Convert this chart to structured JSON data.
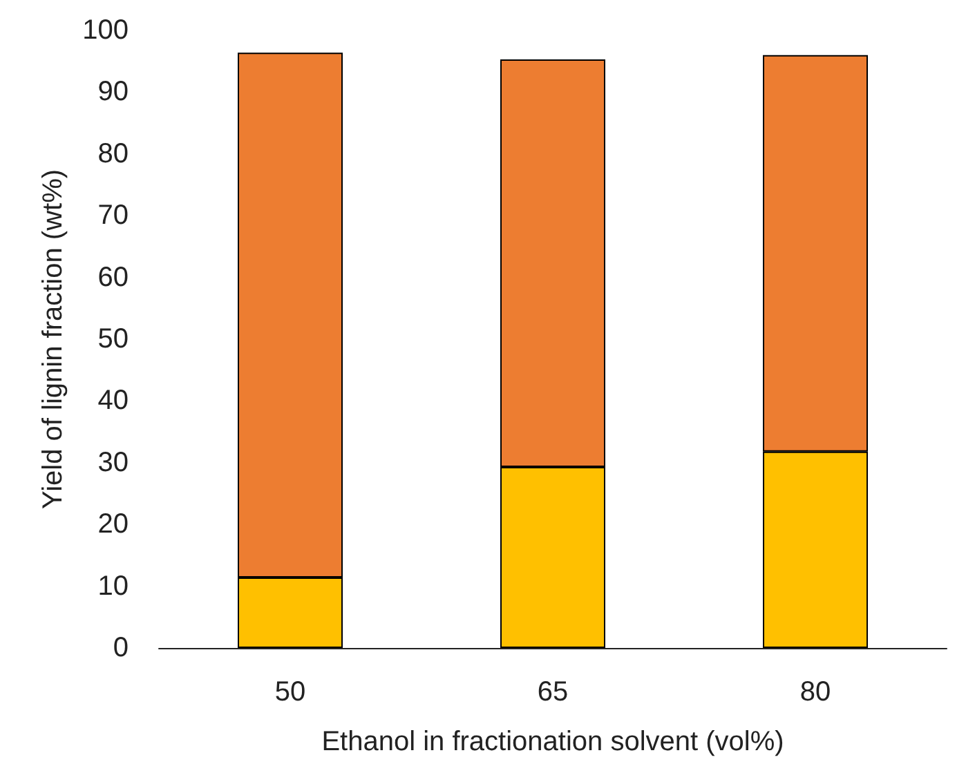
{
  "chart_data": {
    "type": "bar",
    "stacked": true,
    "xlabel": "Ethanol in fractionation solvent (vol%)",
    "ylabel": "Yield of lignin fraction (wt%)",
    "categories": [
      "50",
      "65",
      "80"
    ],
    "series": [
      {
        "color": "#ffc000",
        "values": [
          11.4,
          29.3,
          31.8
        ]
      },
      {
        "color": "#ed7d31",
        "values": [
          85.0,
          66.0,
          64.2
        ]
      }
    ],
    "ylim": [
      0,
      100
    ],
    "yticks": [
      0,
      10,
      20,
      30,
      40,
      50,
      60,
      70,
      80,
      90,
      100
    ],
    "grid": false
  }
}
